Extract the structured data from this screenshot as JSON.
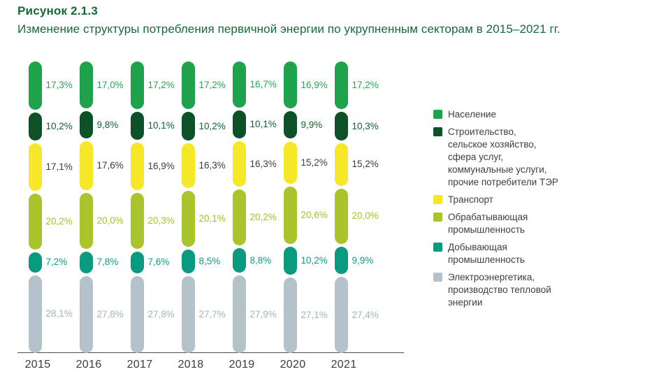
{
  "title": "Рисунок 2.1.3",
  "subtitle": "Изменение структуры потребления первичной энергии по укрупненным секторам в 2015–2021 гг.",
  "colors": {
    "title_green": "#17693a",
    "axis": "#4d4d4d",
    "year_label": "#3c3c3c",
    "legend_text": "#3e3e3e"
  },
  "chart_data": {
    "type": "bar",
    "stacked": true,
    "orientation": "vertical",
    "value_unit": "%",
    "decimal_separator": ",",
    "grid": false,
    "legend_position": "right",
    "categories": [
      "2015",
      "2016",
      "2017",
      "2018",
      "2019",
      "2020",
      "2021"
    ],
    "series": [
      {
        "name": "Население",
        "color": "#1ea24b",
        "label_color": "#2aa457",
        "values": [
          17.3,
          17.0,
          17.2,
          17.2,
          16.7,
          16.9,
          17.2
        ]
      },
      {
        "name": "Строительство, сельское хозяйство, сфера услуг, коммунальные услуги, прочие потребители ТЭР",
        "color": "#0e5129",
        "label_color": "#14602f",
        "values": [
          10.2,
          9.8,
          10.1,
          10.2,
          10.1,
          9.9,
          10.3
        ]
      },
      {
        "name": "Транспорт",
        "color": "#f6e829",
        "label_color": "#3c3c3c",
        "values": [
          17.1,
          17.6,
          16.9,
          16.3,
          16.3,
          15.2,
          15.2
        ]
      },
      {
        "name": "Обрабатывающая промышленность",
        "color": "#a9c42d",
        "label_color": "#a3c22e",
        "values": [
          20.2,
          20.0,
          20.3,
          20.1,
          20.2,
          20.6,
          20.0
        ]
      },
      {
        "name": "Добывающая промышленность",
        "color": "#0a9a80",
        "label_color": "#0d9d82",
        "values": [
          7.2,
          7.8,
          7.6,
          8.5,
          8.8,
          10.2,
          9.9
        ]
      },
      {
        "name": "Электроэнергетика, производство тепловой энергии",
        "color": "#b6c2ca",
        "label_color": "#a2b4bf",
        "values": [
          28.1,
          27.8,
          27.8,
          27.7,
          27.9,
          27.1,
          27.4
        ]
      }
    ]
  },
  "legend": {
    "items": [
      {
        "label": "Население"
      },
      {
        "label": "Строительство,\nсельское хозяйство,\nсфера услуг,\nкоммунальные услуги,\nпрочие потребители ТЭР"
      },
      {
        "label": "Транспорт"
      },
      {
        "label": "Обрабатывающая\nпромышленность"
      },
      {
        "label": "Добывающая\nпромышленность"
      },
      {
        "label": "Электроэнергетика,\nпроизводство тепловой\nэнергии"
      }
    ]
  }
}
